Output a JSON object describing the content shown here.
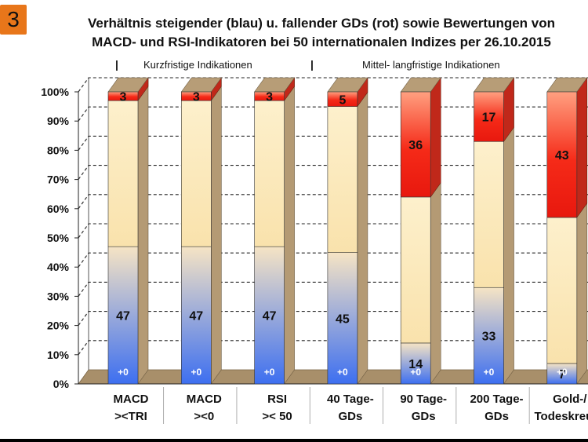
{
  "badge": "3",
  "title": {
    "line1": "Verhältnis steigender (blau) u. fallender GDs (rot) sowie Bewertungen von",
    "line2": "MACD- und RSI-Indikatoren bei 50 internationalen Indizes per 26.10.2015"
  },
  "sections": {
    "short": "Kurzfristige Indikationen",
    "long": "Mittel- langfristige Indikationen",
    "separator": "|"
  },
  "colors": {
    "blue": "#4a78e8",
    "cream": "#fbe7b7",
    "red": "#f02a1a",
    "floor": "#a88f6a",
    "wall": "#ffffff"
  },
  "chart_data": {
    "type": "bar",
    "stacked": true,
    "yunit": "percent",
    "ylim": [
      0,
      100
    ],
    "yticks": [
      "0%",
      "10%",
      "20%",
      "30%",
      "40%",
      "50%",
      "60%",
      "70%",
      "80%",
      "90%",
      "100%"
    ],
    "categories": [
      [
        "MACD",
        "><TRI"
      ],
      [
        "MACD",
        "><0"
      ],
      [
        "RSI",
        ">< 50"
      ],
      [
        "40 Tage-",
        "GDs"
      ],
      [
        "90 Tage-",
        "GDs"
      ],
      [
        "200 Tage-",
        "GDs"
      ],
      [
        "Gold-/",
        "Todeskreuze"
      ]
    ],
    "series": [
      {
        "role": "blue",
        "values": [
          47,
          47,
          47,
          45,
          14,
          33,
          7
        ]
      },
      {
        "role": "red",
        "values": [
          3,
          3,
          3,
          5,
          36,
          17,
          43
        ]
      }
    ],
    "base_labels": [
      "+0",
      "+0",
      "+0",
      "+0",
      "+0",
      "+0",
      "+0"
    ],
    "grid": true
  }
}
